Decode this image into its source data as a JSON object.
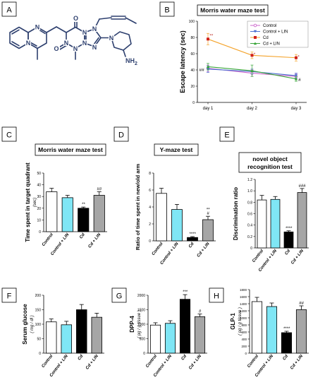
{
  "panels": {
    "A": "A",
    "B": "B",
    "C": "C",
    "D": "D",
    "E": "E",
    "F": "F",
    "G": "G",
    "H": "H"
  },
  "molecule": {
    "nh2_label": "NH",
    "nh2_sub": "2"
  },
  "colors": {
    "control": "#ffffff",
    "control_lin": "#7fe6f5",
    "cd": "#000000",
    "cd_lin": "#a6a6a6",
    "line_control": "#cc66cc",
    "line_control_lin": "#4a6fd0",
    "line_cd": "#f4a32b",
    "line_cd_lin": "#3aa63a",
    "structure": "#2d3f6e",
    "star": "#c0302a"
  },
  "chart_data": [
    {
      "id": "B",
      "type": "line",
      "title": "Morris water maze test",
      "ylabel": "Escape latency (sec)",
      "categories": [
        "day 1",
        "day 2",
        "day 3"
      ],
      "ylim": [
        0,
        100
      ],
      "yticks": [
        "0",
        "20",
        "40",
        "60",
        "80",
        "100"
      ],
      "series": [
        {
          "name": "Control",
          "values": [
            42,
            36,
            32
          ],
          "errors": [
            4,
            4,
            3
          ]
        },
        {
          "name": "Control + LIN",
          "values": [
            41,
            38,
            33
          ],
          "errors": [
            4,
            3,
            3
          ]
        },
        {
          "name": "Cd",
          "values": [
            78,
            58,
            55
          ],
          "errors": [
            7,
            4,
            4
          ]
        },
        {
          "name": "Cd + LIN",
          "values": [
            44,
            39,
            29
          ],
          "errors": [
            4,
            7,
            3
          ]
        }
      ],
      "annotations": [
        {
          "text": "**",
          "category": "day 1",
          "value": 82
        },
        {
          "text": "*",
          "category": "day 2",
          "value": 59
        },
        {
          "text": "*",
          "category": "day 3",
          "value": 56
        },
        {
          "text": "##",
          "category": "day 1",
          "value": 40
        },
        {
          "text": "#",
          "category": "day 3",
          "value": 28
        }
      ]
    },
    {
      "id": "C",
      "type": "bar",
      "title": "Morris water maze test",
      "ylabel": "Time spent in target quadrant",
      "yunit": "(sec)",
      "categories": [
        "Control",
        "Control + LIN",
        "Cd",
        "Cd + LIN"
      ],
      "values": [
        34,
        29,
        20,
        31
      ],
      "errors": [
        3,
        2,
        1,
        3
      ],
      "ylim": [
        0,
        50
      ],
      "yticks": [
        "0",
        "10",
        "20",
        "30",
        "40",
        "50"
      ],
      "annotations": [
        "",
        "",
        "**",
        "##"
      ]
    },
    {
      "id": "D",
      "type": "bar",
      "title": "Y-maze test",
      "ylabel": "Ratio of time spent in new/old arm",
      "categories": [
        "Control",
        "Control + LIN",
        "Cd",
        "Cd + LIN"
      ],
      "values": [
        5.6,
        3.7,
        0.4,
        2.5
      ],
      "errors": [
        0.6,
        0.6,
        0.1,
        0.4
      ],
      "ylim": [
        0,
        8
      ],
      "yticks": [
        "0",
        "2",
        "4",
        "6",
        "8"
      ],
      "annotations": [
        "",
        "",
        "****",
        "**\n#"
      ]
    },
    {
      "id": "E",
      "type": "bar",
      "title": "novel object recognition test",
      "ylabel": "Discrimination ratio",
      "categories": [
        "Control",
        "Control + LIN",
        "Cd",
        "Cd + LIN"
      ],
      "values": [
        0.84,
        0.85,
        0.28,
        0.97
      ],
      "errors": [
        0.08,
        0.05,
        0.02,
        0.07
      ],
      "ylim": [
        0,
        1.2
      ],
      "yticks": [
        "0",
        "0.2",
        "0.4",
        "0.6",
        "0.8",
        "1.0",
        "1.2"
      ],
      "annotations": [
        "",
        "",
        "****",
        "###"
      ]
    },
    {
      "id": "F",
      "type": "bar",
      "title": "",
      "ylabel": "Serum glucose",
      "yunit": "( mg / dl )",
      "categories": [
        "Control",
        "Control + LIN",
        "Cd",
        "Cd + LIN"
      ],
      "values": [
        108,
        98,
        150,
        124
      ],
      "errors": [
        10,
        12,
        18,
        14
      ],
      "ylim": [
        0,
        200
      ],
      "yticks": [
        "0",
        "50",
        "100",
        "150",
        "200"
      ],
      "annotations": [
        "",
        "",
        "",
        ""
      ]
    },
    {
      "id": "G",
      "type": "bar",
      "title": "",
      "ylabel": "DPP-4",
      "yunit": "( pg / g tissue )",
      "categories": [
        "Control",
        "Control + LIN",
        "Cd",
        "Cd + LIN"
      ],
      "values": [
        970,
        1030,
        1860,
        1260
      ],
      "errors": [
        80,
        90,
        160,
        90
      ],
      "ylim": [
        0,
        2000
      ],
      "yticks": [
        "0",
        "500",
        "1000",
        "1500",
        "2000"
      ],
      "annotations": [
        "",
        "",
        "***",
        "#"
      ]
    },
    {
      "id": "H",
      "type": "bar",
      "title": "",
      "ylabel": "GLP-1",
      "yunit": "( pg / g tissue )",
      "categories": [
        "Control",
        "Control + LIN",
        "Cd",
        "Cd + LIN"
      ],
      "values": [
        1460,
        1320,
        580,
        1230
      ],
      "errors": [
        120,
        100,
        40,
        110
      ],
      "ylim": [
        0,
        1800
      ],
      "yticks": [
        "0",
        "200",
        "400",
        "600",
        "800",
        "1000",
        "1200",
        "1400",
        "1600",
        "1800"
      ],
      "annotations": [
        "",
        "",
        "****",
        "##"
      ]
    }
  ]
}
